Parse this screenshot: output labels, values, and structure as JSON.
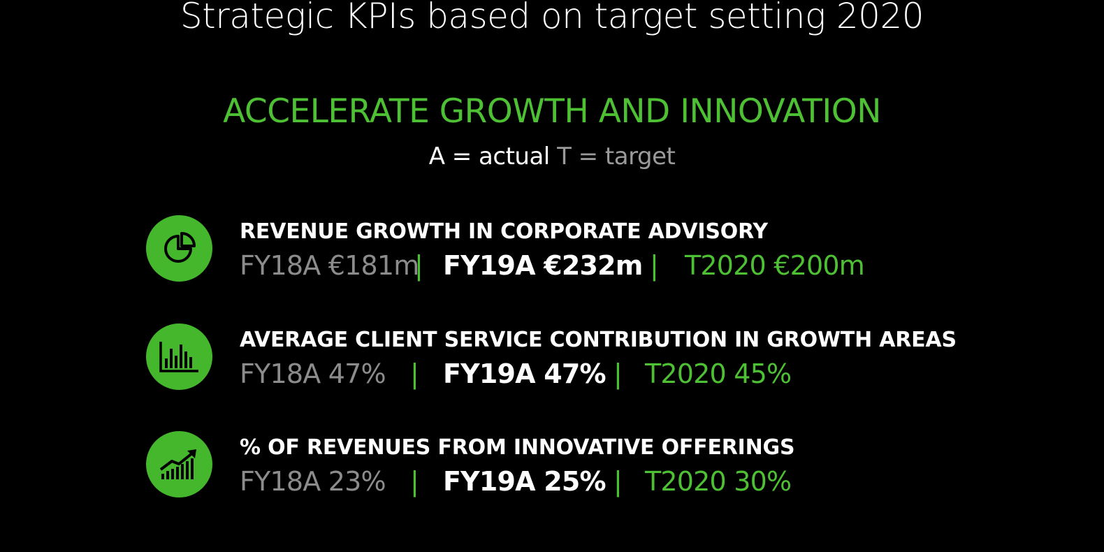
{
  "title": "Strategic KPIs based on target setting 2020",
  "subtitle": "ACCELERATE GROWTH AND INNOVATION",
  "legend": {
    "actual": "A = actual",
    "target": "T = target"
  },
  "colors": {
    "background": "#000000",
    "accent_green": "#4ec034",
    "icon_green": "#44b72c",
    "prior_gray": "#8c8c8c"
  },
  "kpis": [
    {
      "icon": "pie-chart-icon",
      "heading": "REVENUE GROWTH IN CORPORATE ADVISORY",
      "prior": "FY18A €181m",
      "current": "FY19A €232m",
      "target": "T2020 €200m",
      "separator": "|"
    },
    {
      "icon": "bar-chart-icon",
      "heading": "AVERAGE CLIENT SERVICE CONTRIBUTION IN GROWTH AREAS",
      "prior": "FY18A 47%",
      "current": "FY19A 47%",
      "target": "T2020 45%",
      "separator": "|"
    },
    {
      "icon": "growth-chart-icon",
      "heading": "% OF REVENUES FROM INNOVATIVE OFFERINGS",
      "prior": "FY18A 23%",
      "current": "FY19A 25%",
      "target": "T2020 30%",
      "separator": "|"
    }
  ]
}
